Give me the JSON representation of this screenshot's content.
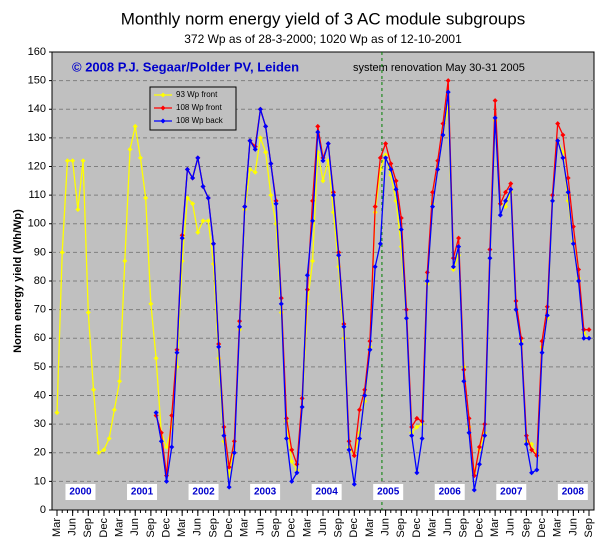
{
  "chart_data": {
    "type": "line",
    "title": "Monthly norm energy yield of 3 AC module subgroups",
    "subtitle": "372 Wp as of 28-3-2000; 1020 Wp as of 12-10-2001",
    "annotations": [
      "© 2008 P.J. Segaar/Polder PV, Leiden",
      "system renovation May 30-31 2005"
    ],
    "year_labels": [
      "2000",
      "2001",
      "2002",
      "2003",
      "2004",
      "2005",
      "2006",
      "2007",
      "2008"
    ],
    "ylabel": "Norm energy yield (Wh/Wp)",
    "ylim": [
      0,
      160
    ],
    "yticks": [
      0,
      10,
      20,
      30,
      40,
      50,
      60,
      70,
      80,
      90,
      100,
      110,
      120,
      130,
      140,
      150,
      160
    ],
    "grid": true,
    "legend": "upper left",
    "categories": [
      "Mar",
      null,
      null,
      "Jun",
      null,
      null,
      "Sep",
      null,
      null,
      "Dec",
      null,
      null,
      "Mar",
      null,
      null,
      "Jun",
      null,
      null,
      "Sep",
      null,
      null,
      "Dec",
      null,
      null,
      "Mar",
      null,
      null,
      "Jun",
      null,
      null,
      "Sep",
      null,
      null,
      "Dec",
      null,
      null,
      "Mar",
      null,
      null,
      "Jun",
      null,
      null,
      "Sep",
      null,
      null,
      "Dec",
      null,
      null,
      "Mar",
      null,
      null,
      "Jun",
      null,
      null,
      "Sep",
      null,
      null,
      "Dec",
      null,
      null,
      "Mar",
      null,
      null,
      "Jun",
      null,
      null,
      "Sep",
      null,
      null,
      "Dec",
      null,
      null,
      "Mar",
      null,
      null,
      "Jun",
      null,
      null,
      "Sep",
      null,
      null,
      "Dec",
      null,
      null,
      "Mar",
      null,
      null,
      "Jun",
      null,
      null,
      "Sep",
      null,
      null,
      "Dec",
      null,
      null,
      "Mar",
      null,
      null,
      "Jun",
      null,
      null,
      "Sep"
    ],
    "series": [
      {
        "name": "93 Wp front",
        "color": "#ffff00",
        "values": [
          34,
          90,
          122,
          122,
          105,
          122,
          69,
          42,
          20,
          21,
          25,
          35,
          45,
          87,
          126,
          134,
          123,
          109,
          72,
          53,
          27,
          22,
          29,
          50,
          87,
          109,
          107,
          97,
          101,
          101,
          86,
          53,
          24,
          12,
          24,
          63,
          105,
          119,
          118,
          130,
          125,
          110,
          100,
          69,
          31,
          17,
          14,
          36,
          72,
          87,
          125,
          115,
          122,
          104,
          85,
          60,
          22,
          19,
          27,
          38,
          57,
          104,
          119,
          124,
          117,
          108,
          92,
          67,
          27,
          29,
          30,
          79,
          107,
          119,
          131,
          141,
          84,
          89,
          50,
          29,
          13,
          21,
          27,
          88,
          136,
          107,
          106,
          111,
          70,
          59,
          24,
          23,
          19,
          57,
          67,
          108,
          129,
          125,
          108,
          94,
          81,
          62,
          60
        ]
      },
      {
        "name": "108 Wp front",
        "color": "#ff0000",
        "values": [
          null,
          null,
          null,
          null,
          null,
          null,
          null,
          null,
          null,
          null,
          null,
          null,
          null,
          null,
          null,
          null,
          null,
          null,
          null,
          33,
          27,
          12,
          33,
          56,
          96,
          119,
          116,
          123,
          113,
          109,
          93,
          58,
          29,
          15,
          24,
          66,
          106,
          129,
          127,
          140,
          134,
          121,
          108,
          74,
          32,
          21,
          16,
          39,
          77,
          108,
          134,
          123,
          128,
          111,
          90,
          65,
          24,
          19,
          35,
          42,
          59,
          106,
          123,
          128,
          121,
          115,
          102,
          70,
          29,
          32,
          31,
          83,
          111,
          122,
          135,
          150,
          88,
          95,
          49,
          32,
          12,
          22,
          30,
          91,
          143,
          107,
          111,
          114,
          73,
          60,
          26,
          21,
          19,
          59,
          71,
          110,
          135,
          131,
          116,
          99,
          84,
          63,
          63
        ]
      },
      {
        "name": "108 Wp back",
        "color": "#0000ff",
        "values": [
          null,
          null,
          null,
          null,
          null,
          null,
          null,
          null,
          null,
          null,
          null,
          null,
          null,
          null,
          null,
          null,
          null,
          null,
          null,
          34,
          24,
          10,
          22,
          55,
          95,
          119,
          116,
          123,
          113,
          109,
          93,
          57,
          26,
          8,
          20,
          64,
          106,
          129,
          126,
          140,
          134,
          121,
          107,
          72,
          25,
          10,
          13,
          36,
          82,
          101,
          132,
          122,
          128,
          110,
          89,
          64,
          21,
          9,
          25,
          40,
          56,
          85,
          93,
          123,
          119,
          112,
          98,
          67,
          26,
          13,
          25,
          80,
          106,
          119,
          131,
          146,
          85,
          92,
          45,
          27,
          7,
          16,
          26,
          88,
          137,
          103,
          108,
          112,
          70,
          58,
          23,
          13,
          14,
          55,
          68,
          108,
          129,
          123,
          111,
          93,
          80,
          60,
          60
        ]
      }
    ]
  }
}
